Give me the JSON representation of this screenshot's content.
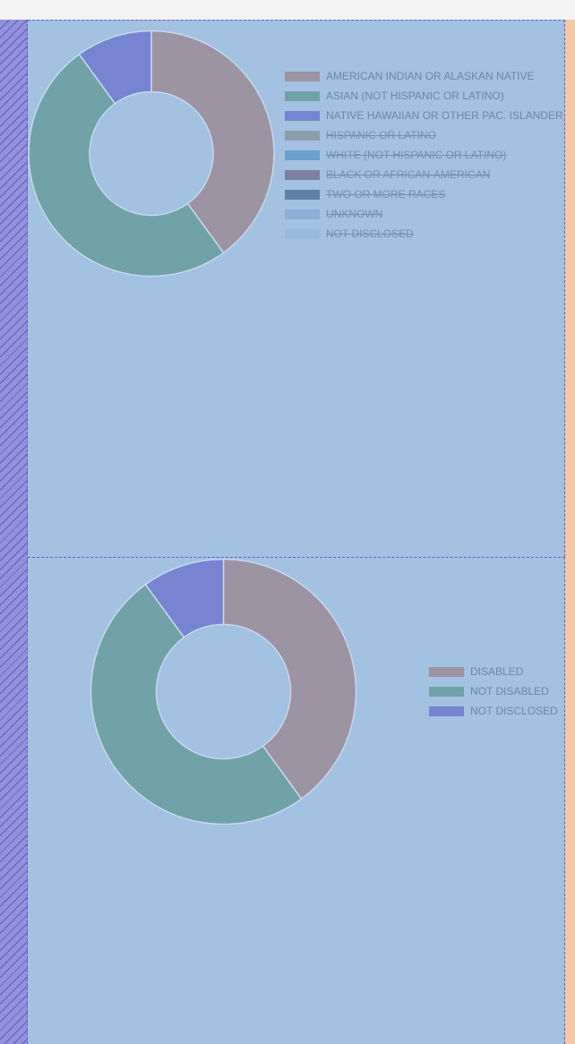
{
  "chart_data": [
    {
      "type": "pie",
      "variant": "doughnut",
      "legend_position": "right",
      "slices": [
        {
          "label": "AMERICAN INDIAN OR ALASKAN NATIVE",
          "value": 4,
          "color": "#9c93a3",
          "visible": true
        },
        {
          "label": "ASIAN (NOT HISPANIC OR LATINO)",
          "value": 5,
          "color": "#70a2a7",
          "visible": true
        },
        {
          "label": "NATIVE HAWAIIAN OR OTHER PAC. ISLANDER",
          "value": 1,
          "color": "#7784d2",
          "visible": true
        },
        {
          "label": "HISPANIC OR LATINO",
          "value": 0,
          "color": "#8e9ea8",
          "visible": false
        },
        {
          "label": "WHITE (NOT HISPANIC OR LATINO)",
          "value": 0,
          "color": "#6ba0cf",
          "visible": false
        },
        {
          "label": "BLACK OR AFRICAN-AMERICAN",
          "value": 0,
          "color": "#7d7fa1",
          "visible": false
        },
        {
          "label": "TWO OR MORE RACES",
          "value": 0,
          "color": "#5f80a7",
          "visible": false
        },
        {
          "label": "UNKNOWN",
          "value": 0,
          "color": "#8eb0d6",
          "visible": false
        },
        {
          "label": "NOT DISCLOSED",
          "value": 0,
          "color": "#98b9dc",
          "visible": false
        }
      ]
    },
    {
      "type": "pie",
      "variant": "doughnut",
      "legend_position": "right",
      "slices": [
        {
          "label": "DISABLED",
          "value": 4,
          "color": "#9c93a3",
          "visible": true
        },
        {
          "label": "NOT DISABLED",
          "value": 5,
          "color": "#70a2a7",
          "visible": true
        },
        {
          "label": "NOT DISCLOSED",
          "value": 1,
          "color": "#7784d2",
          "visible": true
        }
      ]
    }
  ]
}
